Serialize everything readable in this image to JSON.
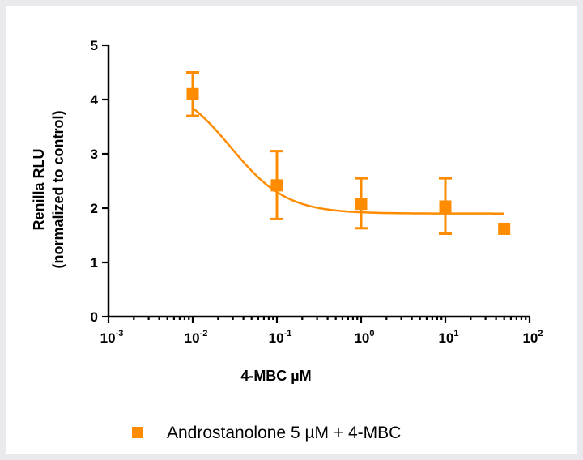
{
  "chart_data": {
    "type": "scatter",
    "x_scale": "log",
    "xlabel": "4-MBC µM",
    "ylabel_line1": "Renilla RLU",
    "ylabel_line2": "(normalized to control)",
    "xlim": [
      0.001,
      100
    ],
    "ylim": [
      0,
      5
    ],
    "x_ticks": [
      {
        "base": "10",
        "exp": "-3"
      },
      {
        "base": "10",
        "exp": "-2"
      },
      {
        "base": "10",
        "exp": "-1"
      },
      {
        "base": "10",
        "exp": "0"
      },
      {
        "base": "10",
        "exp": "1"
      },
      {
        "base": "10",
        "exp": "2"
      }
    ],
    "y_ticks": [
      "0",
      "1",
      "2",
      "3",
      "4",
      "5"
    ],
    "grid": false,
    "legend_position": "bottom",
    "color": "#ff8c00",
    "series": [
      {
        "name": "Androstanolone 5 µM + 4-MBC",
        "marker": "square",
        "points": [
          {
            "x": 0.01,
            "y": 4.1,
            "err_low": 3.7,
            "err_high": 4.5
          },
          {
            "x": 0.1,
            "y": 2.42,
            "err_low": 1.8,
            "err_high": 3.05
          },
          {
            "x": 1,
            "y": 2.08,
            "err_low": 1.63,
            "err_high": 2.55
          },
          {
            "x": 10,
            "y": 2.03,
            "err_low": 1.53,
            "err_high": 2.55
          },
          {
            "x": 50,
            "y": 1.62
          }
        ],
        "fit_curve": {
          "top": 4.35,
          "bottom": 1.9,
          "log_ic50": -1.55,
          "hill_slope": -1.3,
          "x_range": [
            0.01,
            50
          ]
        }
      }
    ]
  }
}
